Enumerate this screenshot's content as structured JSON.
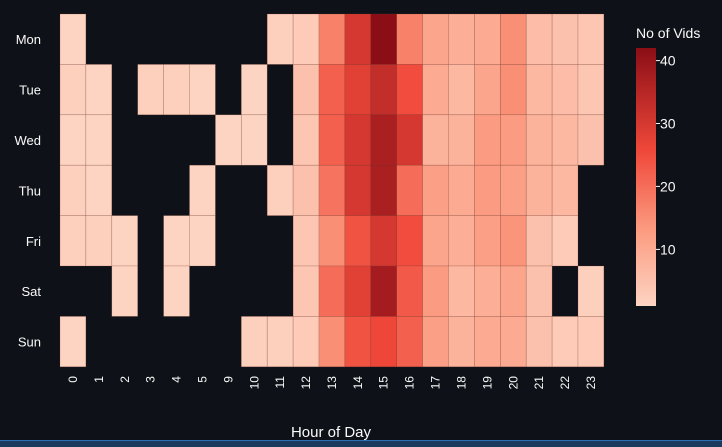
{
  "chart_data": {
    "type": "heatmap",
    "title": "",
    "xlabel": "Hour of Day",
    "ylabel": "",
    "x": [
      "0",
      "1",
      "2",
      "3",
      "4",
      "5",
      "9",
      "10",
      "11",
      "12",
      "13",
      "14",
      "15",
      "16",
      "17",
      "18",
      "19",
      "20",
      "21",
      "22",
      "23"
    ],
    "y": [
      "Mon",
      "Tue",
      "Wed",
      "Thu",
      "Fri",
      "Sat",
      "Sun"
    ],
    "values": [
      [
        1,
        null,
        null,
        null,
        null,
        null,
        null,
        null,
        2,
        3,
        17,
        30,
        42,
        17,
        11,
        9,
        10,
        15,
        6,
        5,
        4
      ],
      [
        2,
        1,
        null,
        2,
        2,
        1,
        null,
        1,
        null,
        5,
        22,
        28,
        33,
        25,
        10,
        7,
        11,
        15,
        7,
        6,
        4
      ],
      [
        1,
        1,
        null,
        null,
        null,
        null,
        1,
        1,
        null,
        4,
        22,
        30,
        37,
        30,
        8,
        8,
        13,
        13,
        8,
        7,
        5
      ],
      [
        2,
        1,
        null,
        null,
        null,
        1,
        null,
        null,
        2,
        5,
        19,
        30,
        37,
        20,
        12,
        10,
        13,
        12,
        8,
        7,
        null
      ],
      [
        2,
        2,
        1,
        null,
        1,
        1,
        null,
        null,
        null,
        4,
        15,
        24,
        30,
        25,
        11,
        9,
        12,
        14,
        5,
        3,
        null
      ],
      [
        null,
        null,
        1,
        null,
        1,
        null,
        null,
        null,
        null,
        4,
        20,
        28,
        38,
        23,
        13,
        7,
        9,
        11,
        5,
        null,
        2
      ],
      [
        1,
        null,
        null,
        null,
        null,
        null,
        null,
        2,
        2,
        3,
        15,
        24,
        26,
        22,
        12,
        8,
        10,
        10,
        5,
        3,
        3
      ]
    ],
    "colorbar": {
      "label": "No of Vids",
      "min": 1,
      "max": 42,
      "ticks": [
        10,
        20,
        30,
        40
      ]
    },
    "colors": {
      "low": "#fdd4c2",
      "mid": "#f5553f",
      "high": "#8b0e16",
      "background": "#0e1117",
      "text": "#fafafa"
    },
    "grid": false
  }
}
